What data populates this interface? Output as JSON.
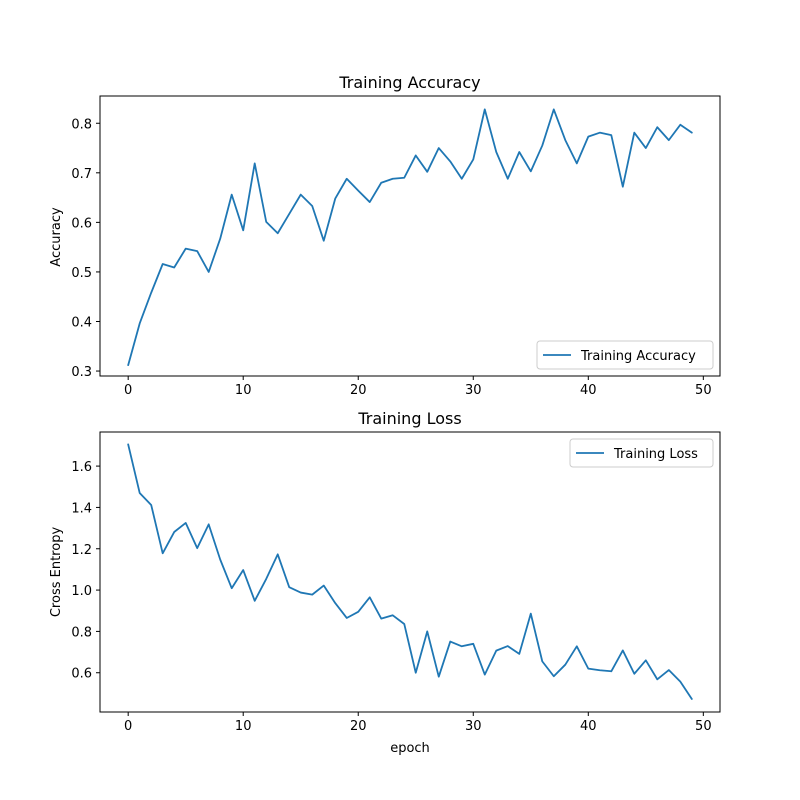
{
  "chart_data": [
    {
      "type": "line",
      "title": "Training Accuracy",
      "xlabel": "",
      "ylabel": "Accuracy",
      "xlim": [
        -2.45,
        51.45
      ],
      "ylim": [
        0.29,
        0.855
      ],
      "xticks": [
        0,
        10,
        20,
        30,
        40,
        50
      ],
      "yticks": [
        0.3,
        0.4,
        0.5,
        0.6,
        0.7,
        0.8
      ],
      "ytick_labels": [
        "0.3",
        "0.4",
        "0.5",
        "0.6",
        "0.7",
        "0.8"
      ],
      "legend_position": "lower-right",
      "grid": false,
      "series": [
        {
          "name": "Training Accuracy",
          "color": "#1f77b4",
          "x": [
            0,
            1,
            2,
            3,
            4,
            5,
            6,
            7,
            8,
            9,
            10,
            11,
            12,
            13,
            14,
            15,
            16,
            17,
            18,
            19,
            20,
            21,
            22,
            23,
            24,
            25,
            26,
            27,
            28,
            29,
            30,
            31,
            32,
            33,
            34,
            35,
            36,
            37,
            38,
            39,
            40,
            41,
            42,
            43,
            44,
            45,
            46,
            47,
            48,
            49
          ],
          "values": [
            0.312,
            0.396,
            0.458,
            0.516,
            0.509,
            0.547,
            0.542,
            0.5,
            0.567,
            0.656,
            0.584,
            0.719,
            0.601,
            0.578,
            0.617,
            0.656,
            0.633,
            0.563,
            0.648,
            0.688,
            0.664,
            0.641,
            0.68,
            0.688,
            0.69,
            0.735,
            0.702,
            0.75,
            0.723,
            0.688,
            0.727,
            0.828,
            0.742,
            0.688,
            0.742,
            0.703,
            0.755,
            0.828,
            0.766,
            0.719,
            0.773,
            0.781,
            0.776,
            0.672,
            0.781,
            0.75,
            0.792,
            0.766,
            0.797,
            0.781
          ]
        }
      ]
    },
    {
      "type": "line",
      "title": "Training Loss",
      "xlabel": "epoch",
      "ylabel": "Cross Entropy",
      "xlim": [
        -2.45,
        51.45
      ],
      "ylim": [
        0.41,
        1.765
      ],
      "xticks": [
        0,
        10,
        20,
        30,
        40,
        50
      ],
      "yticks": [
        0.6,
        0.8,
        1.0,
        1.2,
        1.4,
        1.6
      ],
      "ytick_labels": [
        "0.6",
        "0.8",
        "1.0",
        "1.2",
        "1.4",
        "1.6"
      ],
      "legend_position": "upper-right",
      "grid": false,
      "series": [
        {
          "name": "Training Loss",
          "color": "#1f77b4",
          "x": [
            0,
            1,
            2,
            3,
            4,
            5,
            6,
            7,
            8,
            9,
            10,
            11,
            12,
            13,
            14,
            15,
            16,
            17,
            18,
            19,
            20,
            21,
            22,
            23,
            24,
            25,
            26,
            27,
            28,
            29,
            30,
            31,
            32,
            33,
            34,
            35,
            36,
            37,
            38,
            39,
            40,
            41,
            42,
            43,
            44,
            45,
            46,
            47,
            48,
            49
          ],
          "values": [
            1.705,
            1.47,
            1.412,
            1.178,
            1.281,
            1.325,
            1.203,
            1.318,
            1.148,
            1.009,
            1.097,
            0.948,
            1.054,
            1.173,
            1.014,
            0.988,
            0.978,
            1.022,
            0.937,
            0.865,
            0.895,
            0.965,
            0.862,
            0.878,
            0.836,
            0.6,
            0.8,
            0.581,
            0.751,
            0.728,
            0.74,
            0.591,
            0.707,
            0.729,
            0.691,
            0.886,
            0.655,
            0.583,
            0.639,
            0.728,
            0.62,
            0.612,
            0.607,
            0.708,
            0.595,
            0.66,
            0.568,
            0.613,
            0.557,
            0.473
          ]
        }
      ]
    }
  ]
}
